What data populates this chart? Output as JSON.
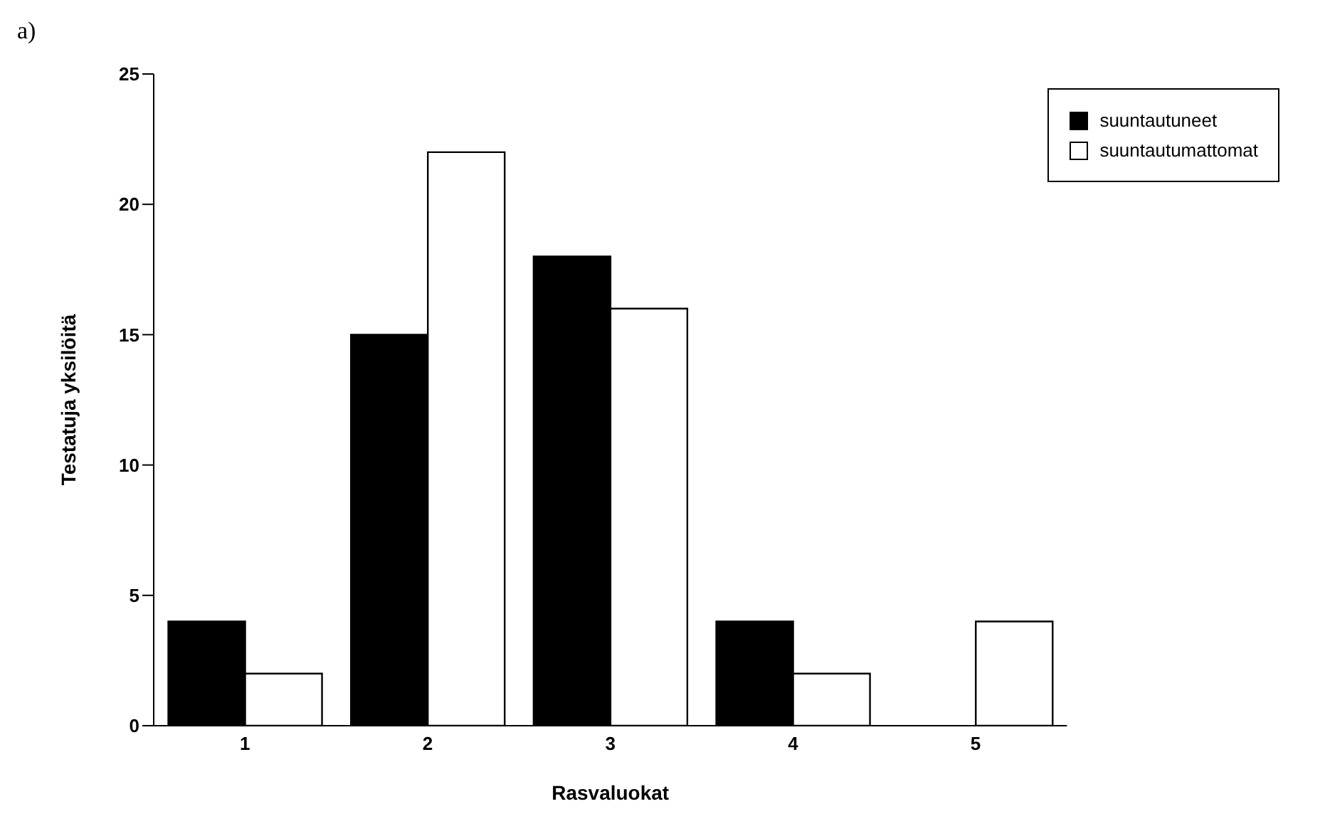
{
  "chart_data": {
    "type": "bar",
    "xlabel": "Rasvaluokat",
    "ylabel": "Testatuja yksilöitä",
    "annotations": [
      "a)"
    ],
    "categories": [
      "1",
      "2",
      "3",
      "4",
      "5"
    ],
    "series": [
      {
        "name": "suuntautuneet",
        "color": "#000000",
        "values": [
          4,
          15,
          18,
          4,
          null
        ]
      },
      {
        "name": "suuntautumattomat",
        "color": "#ffffff",
        "values": [
          2,
          22,
          16,
          2,
          4
        ]
      }
    ],
    "ylim": [
      0,
      25
    ],
    "yticks": [
      0,
      5,
      10,
      15,
      20,
      25
    ],
    "grid": false,
    "legend": "top right"
  }
}
